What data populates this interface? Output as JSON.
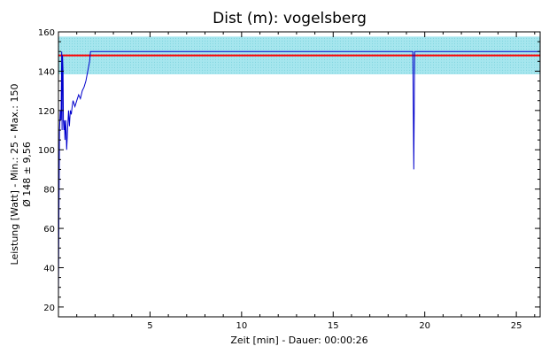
{
  "chart_data": {
    "type": "line",
    "title": "Dist (m): vogelsberg",
    "xlabel": "Zeit [min] - Dauer: 00:00:26",
    "ylabel_lines": [
      "Leistung [Watt] - Min.: 25 - Max.: 150",
      "Ø 148 ± 9,56"
    ],
    "xlim": [
      0,
      26.3
    ],
    "ylim": [
      15,
      160
    ],
    "x_ticks": [
      5,
      10,
      15,
      20,
      25
    ],
    "y_ticks": [
      20,
      40,
      60,
      80,
      100,
      120,
      140,
      160
    ],
    "grid": false,
    "mean": 148,
    "std": 9.56,
    "band": [
      138.4,
      157.6
    ],
    "colors": {
      "series": "#0000cc",
      "mean": "#ff0000",
      "band": "#a6e6ee"
    },
    "series": [
      {
        "x": [
          0,
          0.03,
          0.06,
          0.1,
          0.14,
          0.18,
          0.2,
          0.22,
          0.25,
          0.27,
          0.3,
          0.33,
          0.36,
          0.4,
          0.45,
          0.5,
          0.55,
          0.6,
          0.65,
          0.7,
          0.75,
          0.8,
          0.9,
          1.0,
          1.1,
          1.2,
          1.3,
          1.4,
          1.5,
          1.6,
          1.7,
          1.75,
          19.35,
          19.4,
          19.45,
          26.3
        ],
        "y": [
          25,
          70,
          110,
          120,
          115,
          150,
          110,
          148,
          140,
          115,
          110,
          115,
          105,
          115,
          100,
          110,
          120,
          112,
          120,
          118,
          122,
          125,
          122,
          125,
          128,
          126,
          130,
          132,
          135,
          140,
          145,
          150,
          150,
          90,
          150,
          150
        ]
      }
    ]
  }
}
